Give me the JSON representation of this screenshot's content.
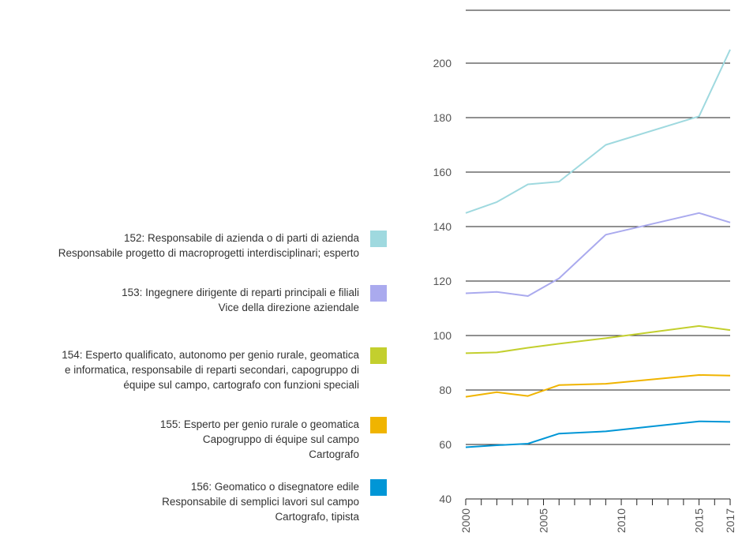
{
  "chart_data": {
    "type": "line",
    "title": "",
    "xlabel": "",
    "ylabel": "",
    "ylim": [
      40,
      210
    ],
    "xlim": [
      2000,
      2017
    ],
    "y_ticks": [
      40,
      60,
      80,
      100,
      120,
      140,
      160,
      180,
      200
    ],
    "x_tick_labels": [
      "2000",
      "2005",
      "2010",
      "2015",
      "2017"
    ],
    "x_tick_values": [
      2000,
      2005,
      2010,
      2015,
      2017
    ],
    "grid": "horizontal",
    "legend_position": "left",
    "series": [
      {
        "name": "152: Responsabile di azienda o di parti di azienda\nResponsabile progetto di macroprogetti interdisciplinari; esperto",
        "color": "#9fd9df",
        "x": [
          2000,
          2002,
          2004,
          2006,
          2009,
          2015,
          2017
        ],
        "values": [
          145,
          149,
          155.5,
          156.5,
          170,
          180.5,
          205
        ]
      },
      {
        "name": "153: Ingegnere dirigente di reparti principali e filiali\nVice della direzione aziendale",
        "color": "#aaaaee",
        "x": [
          2000,
          2002,
          2004,
          2006,
          2009,
          2015,
          2017
        ],
        "values": [
          115.5,
          116,
          114.5,
          121,
          137,
          145,
          141.5
        ]
      },
      {
        "name": "154: Esperto qualificato, autonomo per genio rurale, geomatica\ne informatica, responsabile di reparti secondari, capogruppo di\néquipe sul campo, cartografo con funzioni speciali",
        "color": "#c3cf2e",
        "x": [
          2000,
          2002,
          2004,
          2006,
          2009,
          2015,
          2017
        ],
        "values": [
          93.5,
          93.8,
          95.5,
          97,
          99,
          103.5,
          102
        ]
      },
      {
        "name": "155: Esperto per genio rurale o geomatica\nCapogruppo di équipe sul campo\nCartografo",
        "color": "#f0b400",
        "x": [
          2000,
          2002,
          2004,
          2006,
          2009,
          2015,
          2017
        ],
        "values": [
          77.5,
          79.2,
          77.8,
          81.8,
          82.3,
          85.5,
          85.3
        ]
      },
      {
        "name": "156: Geomatico o disegnatore edile\nResponsabile di semplici lavori sul campo\nCartografo, tipista",
        "color": "#0096d6",
        "x": [
          2000,
          2002,
          2004,
          2006,
          2009,
          2015,
          2017
        ],
        "values": [
          59,
          59.7,
          60.3,
          64,
          64.8,
          68.5,
          68.3
        ]
      }
    ]
  }
}
